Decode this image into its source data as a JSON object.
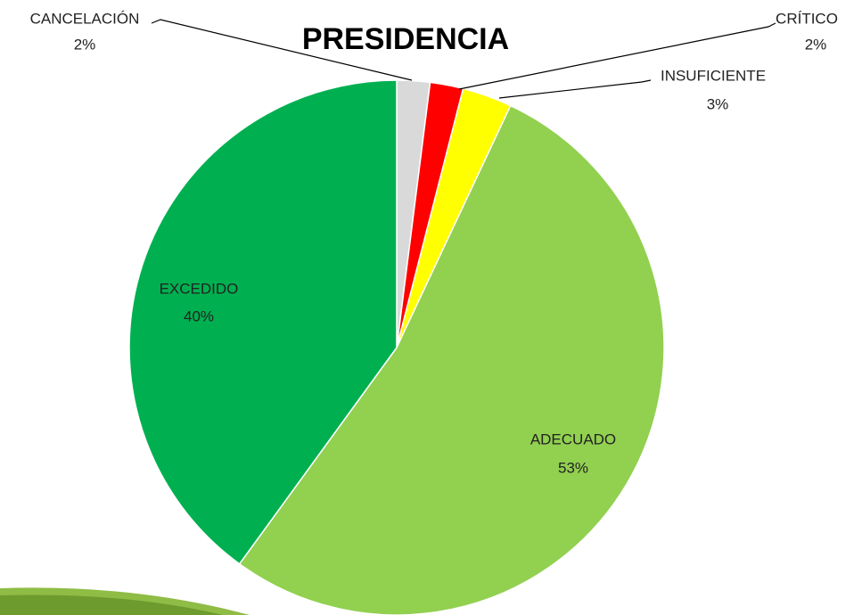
{
  "chart_data": {
    "type": "pie",
    "title": "PRESIDENCIA",
    "categories": [
      "CANCELACIÓN",
      "CRÍTICO",
      "INSUFICIENTE",
      "ADECUADO",
      "EXCEDIDO"
    ],
    "values": [
      2,
      2,
      3,
      53,
      40
    ],
    "value_labels": [
      "2%",
      "2%",
      "3%",
      "53%",
      "40%"
    ],
    "colors": [
      "#d9d9d9",
      "#ff0000",
      "#ffff00",
      "#92d050",
      "#00b050"
    ]
  }
}
